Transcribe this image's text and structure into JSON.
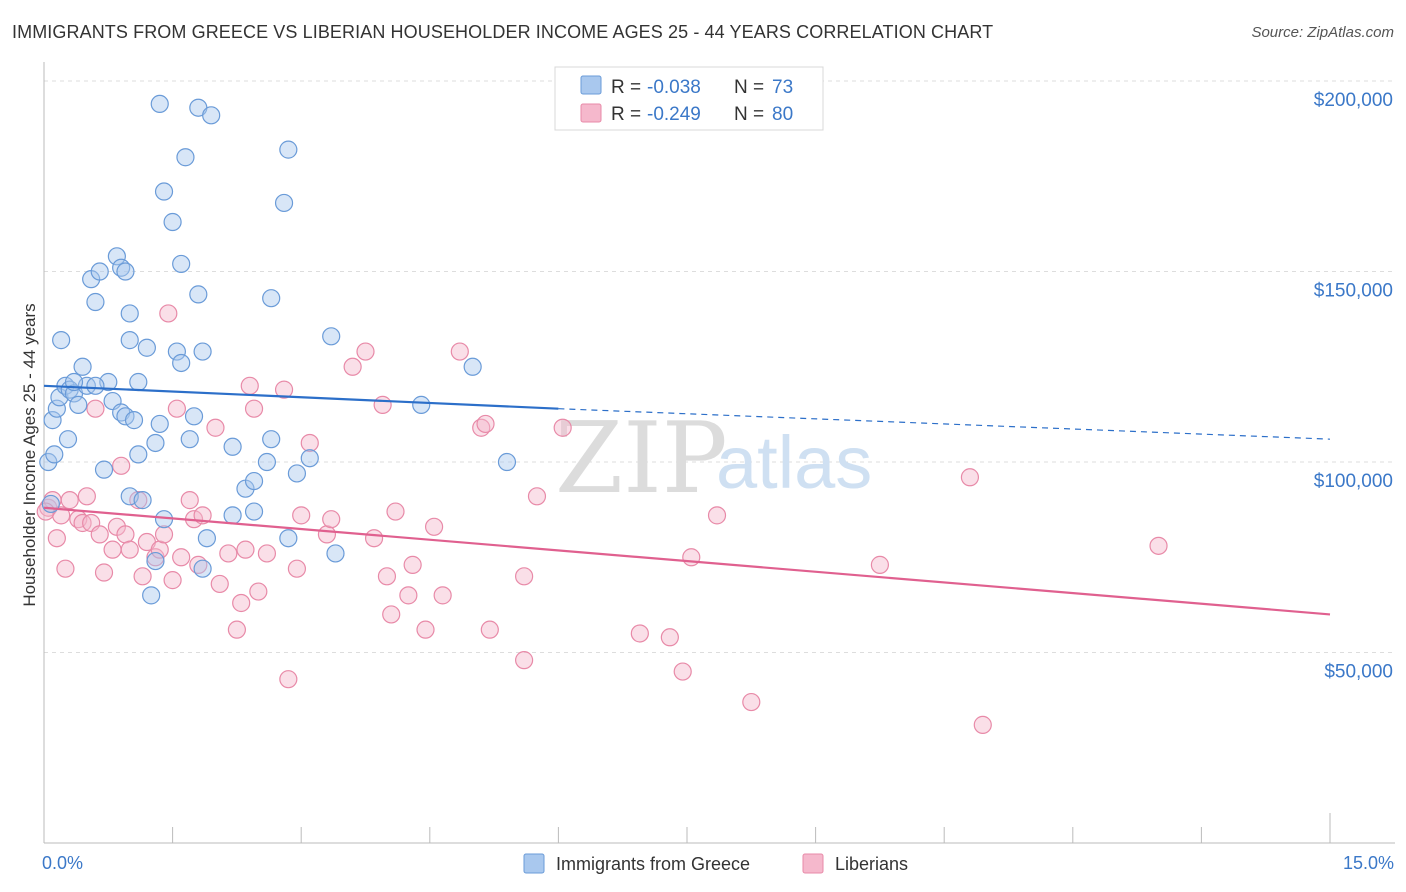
{
  "title": "IMMIGRANTS FROM GREECE VS LIBERIAN HOUSEHOLDER INCOME AGES 25 - 44 YEARS CORRELATION CHART",
  "source": "Source: ZipAtlas.com",
  "watermark": {
    "zip": "ZIP",
    "atlas": "atlas"
  },
  "colors": {
    "blue_fill": "#a9c8ee",
    "blue_stroke": "#6a9bd8",
    "blue_line": "#2c6fc9",
    "pink_fill": "#f5b8cc",
    "pink_stroke": "#e88aa8",
    "pink_line": "#e0608f",
    "axis_text": "#3b78c8",
    "grid": "#dddddd"
  },
  "legend": {
    "rows": [
      {
        "r_label": "R =",
        "r_value": "-0.038",
        "n_label": "N =",
        "n_value": "73",
        "series": "blue"
      },
      {
        "r_label": "R =",
        "r_value": "-0.249",
        "n_label": "N =",
        "n_value": "80",
        "series": "pink"
      }
    ]
  },
  "chart_data": {
    "type": "scatter",
    "xlabel": "",
    "ylabel": "Householder Income Ages 25 - 44 years",
    "x_tick_labels": [
      "0.0%",
      "15.0%"
    ],
    "y_tick_labels": [
      "$50,000",
      "$100,000",
      "$150,000",
      "$200,000"
    ],
    "y_ticks": [
      50000,
      100000,
      150000,
      200000
    ],
    "xlim": [
      0,
      15
    ],
    "ylim": [
      0,
      205000
    ],
    "grid": true,
    "legend_position": "bottom-center",
    "series": [
      {
        "name": "Immigrants from Greece",
        "color": "blue",
        "r": -0.038,
        "n": 73,
        "trend": {
          "x_start": 0,
          "y_start": 120000,
          "x_solid_end": 6.0,
          "y_solid_end": 114000,
          "x_end": 15,
          "y_end": 106000
        },
        "points": [
          [
            0.05,
            100000
          ],
          [
            0.1,
            111000
          ],
          [
            0.12,
            102000
          ],
          [
            0.15,
            114000
          ],
          [
            0.18,
            117000
          ],
          [
            0.2,
            132000
          ],
          [
            0.25,
            120000
          ],
          [
            0.28,
            106000
          ],
          [
            0.3,
            119000
          ],
          [
            0.35,
            118000
          ],
          [
            0.4,
            115000
          ],
          [
            0.45,
            125000
          ],
          [
            0.5,
            120000
          ],
          [
            0.55,
            148000
          ],
          [
            0.6,
            142000
          ],
          [
            0.65,
            150000
          ],
          [
            0.7,
            98000
          ],
          [
            0.75,
            121000
          ],
          [
            0.8,
            116000
          ],
          [
            0.85,
            154000
          ],
          [
            0.9,
            113000
          ],
          [
            0.9,
            151000
          ],
          [
            0.95,
            112000
          ],
          [
            1.0,
            132000
          ],
          [
            1.0,
            91000
          ],
          [
            1.05,
            111000
          ],
          [
            1.1,
            102000
          ],
          [
            1.1,
            121000
          ],
          [
            1.15,
            90000
          ],
          [
            1.2,
            130000
          ],
          [
            1.25,
            65000
          ],
          [
            1.3,
            74000
          ],
          [
            1.3,
            105000
          ],
          [
            1.35,
            110000
          ],
          [
            1.35,
            194000
          ],
          [
            1.4,
            171000
          ],
          [
            1.4,
            85000
          ],
          [
            1.5,
            163000
          ],
          [
            1.55,
            129000
          ],
          [
            1.6,
            152000
          ],
          [
            1.6,
            126000
          ],
          [
            1.65,
            180000
          ],
          [
            1.7,
            106000
          ],
          [
            1.75,
            112000
          ],
          [
            1.8,
            144000
          ],
          [
            1.85,
            72000
          ],
          [
            1.85,
            129000
          ],
          [
            1.9,
            80000
          ],
          [
            1.8,
            193000
          ],
          [
            1.95,
            191000
          ],
          [
            2.2,
            86000
          ],
          [
            2.2,
            104000
          ],
          [
            2.35,
            93000
          ],
          [
            2.45,
            87000
          ],
          [
            2.45,
            95000
          ],
          [
            2.6,
            100000
          ],
          [
            2.65,
            106000
          ],
          [
            2.8,
            168000
          ],
          [
            2.85,
            182000
          ],
          [
            2.85,
            80000
          ],
          [
            2.95,
            97000
          ],
          [
            3.1,
            101000
          ],
          [
            2.65,
            143000
          ],
          [
            3.35,
            133000
          ],
          [
            3.4,
            76000
          ],
          [
            4.4,
            115000
          ],
          [
            5.0,
            125000
          ],
          [
            5.4,
            100000
          ],
          [
            0.08,
            89000
          ],
          [
            0.6,
            120000
          ],
          [
            0.35,
            121000
          ],
          [
            1.0,
            139000
          ],
          [
            0.95,
            150000
          ]
        ]
      },
      {
        "name": "Liberians",
        "color": "pink",
        "r": -0.249,
        "n": 80,
        "trend": {
          "x_start": 0,
          "y_start": 88000,
          "x_end": 15,
          "y_end": 60000
        },
        "points": [
          [
            0.05,
            88000
          ],
          [
            0.1,
            90000
          ],
          [
            0.15,
            80000
          ],
          [
            0.2,
            86000
          ],
          [
            0.25,
            72000
          ],
          [
            0.3,
            90000
          ],
          [
            0.4,
            85000
          ],
          [
            0.45,
            84000
          ],
          [
            0.5,
            91000
          ],
          [
            0.55,
            84000
          ],
          [
            0.6,
            114000
          ],
          [
            0.65,
            81000
          ],
          [
            0.7,
            71000
          ],
          [
            0.8,
            77000
          ],
          [
            0.85,
            83000
          ],
          [
            0.9,
            99000
          ],
          [
            0.95,
            81000
          ],
          [
            1.0,
            77000
          ],
          [
            1.1,
            90000
          ],
          [
            1.15,
            70000
          ],
          [
            1.2,
            79000
          ],
          [
            1.3,
            75000
          ],
          [
            1.35,
            77000
          ],
          [
            1.4,
            81000
          ],
          [
            1.45,
            139000
          ],
          [
            1.5,
            69000
          ],
          [
            1.55,
            114000
          ],
          [
            1.6,
            75000
          ],
          [
            1.7,
            90000
          ],
          [
            1.75,
            85000
          ],
          [
            1.8,
            73000
          ],
          [
            1.85,
            86000
          ],
          [
            2.0,
            109000
          ],
          [
            2.05,
            68000
          ],
          [
            2.15,
            76000
          ],
          [
            2.25,
            56000
          ],
          [
            2.3,
            63000
          ],
          [
            2.35,
            77000
          ],
          [
            2.4,
            120000
          ],
          [
            2.45,
            114000
          ],
          [
            2.5,
            66000
          ],
          [
            2.6,
            76000
          ],
          [
            2.8,
            119000
          ],
          [
            2.85,
            43000
          ],
          [
            2.95,
            72000
          ],
          [
            3.0,
            86000
          ],
          [
            3.1,
            105000
          ],
          [
            3.3,
            81000
          ],
          [
            3.35,
            85000
          ],
          [
            3.6,
            125000
          ],
          [
            3.75,
            129000
          ],
          [
            3.85,
            80000
          ],
          [
            3.95,
            115000
          ],
          [
            4.0,
            70000
          ],
          [
            4.05,
            60000
          ],
          [
            4.1,
            87000
          ],
          [
            4.25,
            65000
          ],
          [
            4.3,
            73000
          ],
          [
            4.45,
            56000
          ],
          [
            4.55,
            83000
          ],
          [
            4.65,
            65000
          ],
          [
            4.85,
            129000
          ],
          [
            5.1,
            109000
          ],
          [
            5.15,
            110000
          ],
          [
            5.2,
            56000
          ],
          [
            5.6,
            48000
          ],
          [
            5.6,
            70000
          ],
          [
            5.75,
            91000
          ],
          [
            6.05,
            109000
          ],
          [
            6.95,
            55000
          ],
          [
            7.3,
            54000
          ],
          [
            7.55,
            75000
          ],
          [
            7.45,
            45000
          ],
          [
            7.85,
            86000
          ],
          [
            8.25,
            37000
          ],
          [
            9.75,
            73000
          ],
          [
            10.95,
            31000
          ],
          [
            10.8,
            96000
          ],
          [
            13.0,
            78000
          ],
          [
            0.02,
            87000
          ]
        ]
      }
    ]
  },
  "bottom_legend": [
    {
      "label": "Immigrants from Greece",
      "color": "blue"
    },
    {
      "label": "Liberians",
      "color": "pink"
    }
  ]
}
